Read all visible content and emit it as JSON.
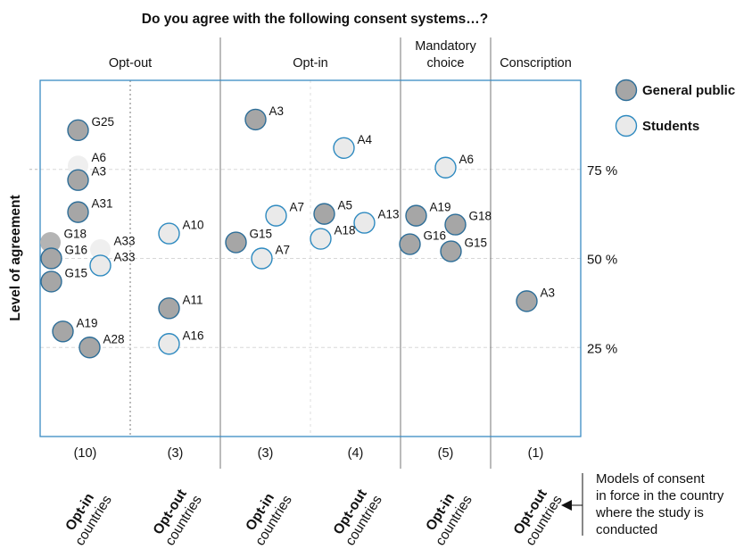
{
  "chart_data": {
    "type": "scatter",
    "title": "Do you agree with the following consent systems…?",
    "ylabel": "Level of agreement",
    "ylim": [
      0,
      100
    ],
    "yticks": [
      {
        "value": 75,
        "label": "75 %"
      },
      {
        "value": 50,
        "label": "50 %"
      },
      {
        "value": 25,
        "label": "25 %"
      }
    ],
    "groups": [
      {
        "name": "Opt-out",
        "columns": [
          {
            "model_strong": "Opt-in",
            "model_weak": "countries",
            "count": "(10)"
          },
          {
            "model_strong": "Opt-out",
            "model_weak": "countries",
            "count": "(3)"
          }
        ]
      },
      {
        "name": "Opt-in",
        "columns": [
          {
            "model_strong": "Opt-in",
            "model_weak": "countries",
            "count": "(3)"
          },
          {
            "model_strong": "Opt-out",
            "model_weak": "countries",
            "count": "(4)"
          }
        ]
      },
      {
        "name": "Mandatory choice",
        "name_lines": [
          "Mandatory",
          "choice"
        ],
        "columns": [
          {
            "model_strong": "Opt-in",
            "model_weak": "countries",
            "count": "(5)"
          }
        ]
      },
      {
        "name": "Conscription",
        "columns": [
          {
            "model_strong": "Opt-out",
            "model_weak": "countries",
            "count": "(1)"
          }
        ]
      }
    ],
    "legend": [
      {
        "name": "General public",
        "color": "#a6a6a6",
        "stroke": "#2e6e98"
      },
      {
        "name": "Students",
        "color": "#eaeaea",
        "stroke": "#2e8ac0"
      }
    ],
    "legend_position": "right",
    "side_note": [
      "Models of consent",
      "in force in the country",
      "where the study is",
      "conducted"
    ],
    "series": [
      {
        "group": "Opt-out",
        "column": 0,
        "label": "G25",
        "type": "General public",
        "value": 86
      },
      {
        "group": "Opt-out",
        "column": 0,
        "label": "A6",
        "type": "Students",
        "value": 76,
        "faded": true
      },
      {
        "group": "Opt-out",
        "column": 0,
        "label": "A3",
        "type": "General public",
        "value": 72
      },
      {
        "group": "Opt-out",
        "column": 0,
        "label": "A31",
        "type": "General public",
        "value": 63
      },
      {
        "group": "Opt-out",
        "column": 0,
        "label": "G18",
        "type": "General public",
        "value": 54.5,
        "faded": true
      },
      {
        "group": "Opt-out",
        "column": 0,
        "label": "A33",
        "type": "Students",
        "value": 52.5,
        "faded": true
      },
      {
        "group": "Opt-out",
        "column": 0,
        "label": "G16",
        "type": "General public",
        "value": 50
      },
      {
        "group": "Opt-out",
        "column": 0,
        "label": "A33",
        "type": "Students",
        "value": 48
      },
      {
        "group": "Opt-out",
        "column": 0,
        "label": "G15",
        "type": "General public",
        "value": 43.5
      },
      {
        "group": "Opt-out",
        "column": 0,
        "label": "A19",
        "type": "General public",
        "value": 29.5
      },
      {
        "group": "Opt-out",
        "column": 0,
        "label": "A28",
        "type": "General public",
        "value": 25
      },
      {
        "group": "Opt-out",
        "column": 1,
        "label": "A10",
        "type": "Students",
        "value": 57
      },
      {
        "group": "Opt-out",
        "column": 1,
        "label": "A11",
        "type": "General public",
        "value": 36
      },
      {
        "group": "Opt-out",
        "column": 1,
        "label": "A16",
        "type": "Students",
        "value": 26
      },
      {
        "group": "Opt-in",
        "column": 0,
        "label": "A3",
        "type": "General public",
        "value": 89
      },
      {
        "group": "Opt-in",
        "column": 0,
        "label": "A7",
        "type": "Students",
        "value": 62
      },
      {
        "group": "Opt-in",
        "column": 0,
        "label": "G15",
        "type": "General public",
        "value": 54.5
      },
      {
        "group": "Opt-in",
        "column": 0,
        "label": "A7",
        "type": "Students",
        "value": 50
      },
      {
        "group": "Opt-in",
        "column": 1,
        "label": "A4",
        "type": "Students",
        "value": 81
      },
      {
        "group": "Opt-in",
        "column": 1,
        "label": "A5",
        "type": "General public",
        "value": 62.5
      },
      {
        "group": "Opt-in",
        "column": 1,
        "label": "A13",
        "type": "Students",
        "value": 60
      },
      {
        "group": "Opt-in",
        "column": 1,
        "label": "A18",
        "type": "Students",
        "value": 55.5
      },
      {
        "group": "Mandatory choice",
        "column": 0,
        "label": "A6",
        "type": "Students",
        "value": 75.5
      },
      {
        "group": "Mandatory choice",
        "column": 0,
        "label": "A19",
        "type": "General public",
        "value": 62
      },
      {
        "group": "Mandatory choice",
        "column": 0,
        "label": "G18",
        "type": "General public",
        "value": 59.5
      },
      {
        "group": "Mandatory choice",
        "column": 0,
        "label": "G16",
        "type": "General public",
        "value": 54
      },
      {
        "group": "Mandatory choice",
        "column": 0,
        "label": "G15",
        "type": "General public",
        "value": 52
      },
      {
        "group": "Conscription",
        "column": 0,
        "label": "A3",
        "type": "General public",
        "value": 38
      }
    ]
  }
}
